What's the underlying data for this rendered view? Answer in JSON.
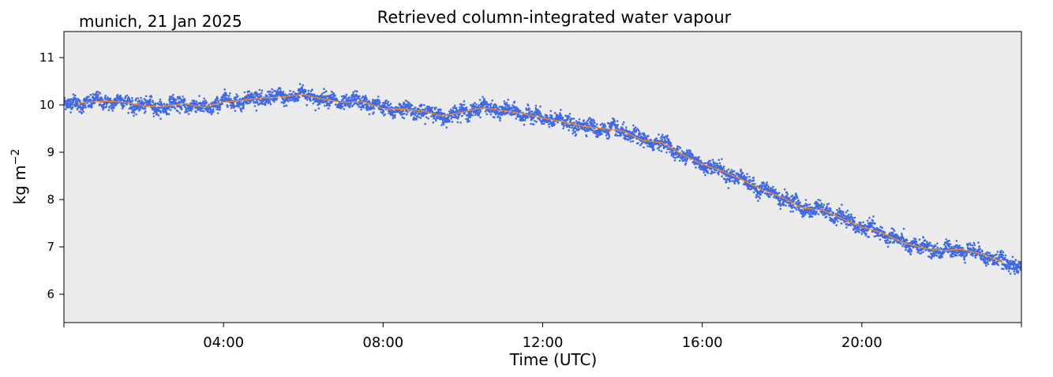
{
  "chart_data": {
    "type": "scatter",
    "title": "Retrieved column-integrated water vapour",
    "location_label": "munich, 21 Jan 2025",
    "xlabel": "Time (UTC)",
    "ylabel": "kg m",
    "ylabel_superscript": "−2",
    "xlim": [
      0,
      24
    ],
    "ylim": [
      5.4,
      11.55
    ],
    "x_ticks": [
      {
        "value": 4,
        "label": "04:00"
      },
      {
        "value": 8,
        "label": "08:00"
      },
      {
        "value": 12,
        "label": "12:00"
      },
      {
        "value": 16,
        "label": "16:00"
      },
      {
        "value": 20,
        "label": "20:00"
      }
    ],
    "y_ticks": [
      6,
      7,
      8,
      9,
      10,
      11
    ],
    "grid": false,
    "background_color": "#ebebeb",
    "series": [
      {
        "kind": "scatter",
        "color": "#4169e1",
        "noise_amplitude": 0.13,
        "x": [
          0,
          0.5,
          1,
          1.5,
          2,
          2.5,
          3,
          3.5,
          4,
          4.5,
          5,
          5.5,
          6,
          6.5,
          7,
          7.5,
          8,
          8.5,
          9,
          9.5,
          10,
          10.5,
          11,
          11.5,
          12,
          12.5,
          13,
          13.5,
          14,
          14.5,
          15,
          15.5,
          16,
          16.5,
          17,
          17.5,
          18,
          18.5,
          19,
          19.5,
          20,
          20.5,
          21,
          21.5,
          22,
          22.5,
          23,
          23.5,
          24
        ],
        "y": [
          10.0,
          10.05,
          10.08,
          10.06,
          9.98,
          9.96,
          10.03,
          9.92,
          10.07,
          10.1,
          10.15,
          10.16,
          10.23,
          10.12,
          10.05,
          10.08,
          9.92,
          9.9,
          9.87,
          9.75,
          9.85,
          9.95,
          9.88,
          9.82,
          9.72,
          9.65,
          9.55,
          9.5,
          9.45,
          9.25,
          9.2,
          8.95,
          8.75,
          8.6,
          8.42,
          8.2,
          8.05,
          7.82,
          7.78,
          7.6,
          7.42,
          7.3,
          7.1,
          6.98,
          6.92,
          6.95,
          6.85,
          6.68,
          6.6
        ]
      },
      {
        "kind": "line",
        "color": "#ff8c1a",
        "x": [
          0.35,
          0.5,
          1,
          1.5,
          2,
          2.5,
          3,
          3.5,
          4,
          4.5,
          5,
          5.5,
          6,
          6.5,
          7,
          7.5,
          8,
          8.5,
          9,
          9.5,
          10,
          10.5,
          11,
          11.5,
          12,
          12.5,
          13,
          13.5,
          14,
          14.5,
          15,
          15.5,
          16,
          16.5,
          17,
          17.5,
          18,
          18.5,
          19,
          19.5,
          20,
          20.5,
          21,
          21.5,
          22,
          22.5,
          23,
          23.55
        ],
        "y": [
          10.03,
          10.05,
          10.08,
          10.06,
          9.98,
          9.96,
          10.03,
          9.95,
          10.06,
          10.1,
          10.15,
          10.17,
          10.22,
          10.12,
          10.05,
          10.07,
          9.92,
          9.91,
          9.87,
          9.76,
          9.85,
          9.94,
          9.88,
          9.82,
          9.72,
          9.65,
          9.55,
          9.5,
          9.45,
          9.25,
          9.2,
          8.95,
          8.75,
          8.6,
          8.42,
          8.2,
          8.05,
          7.82,
          7.78,
          7.6,
          7.42,
          7.3,
          7.1,
          6.98,
          6.92,
          6.95,
          6.85,
          6.67
        ]
      }
    ]
  }
}
